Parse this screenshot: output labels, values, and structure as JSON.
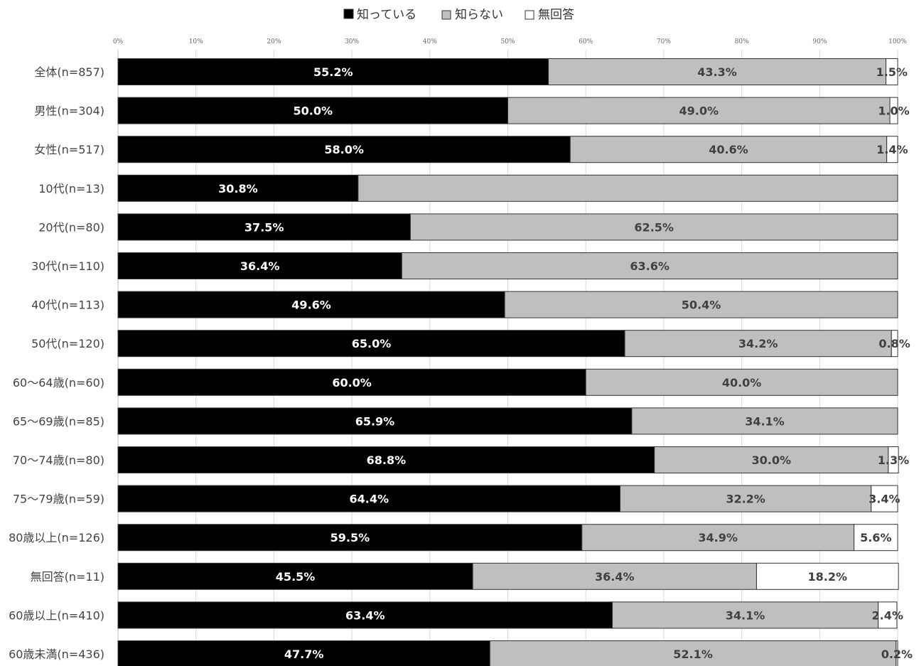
{
  "colors": {
    "know": "#000000",
    "dont_know": "#bfbfbf",
    "no_answer": "#ffffff",
    "border": "#333333",
    "grid": "#d9d9d9",
    "label_on_dark": "#ffffff",
    "label_on_light": "#404040"
  },
  "chart_data": {
    "type": "bar",
    "orientation": "horizontal",
    "stacked": true,
    "percent_stacked": true,
    "title": "",
    "xlabel": "",
    "ylabel": "",
    "xlim": [
      0,
      100
    ],
    "x_ticks": [
      "0%",
      "10%",
      "20%",
      "30%",
      "40%",
      "50%",
      "60%",
      "70%",
      "80%",
      "90%",
      "100%"
    ],
    "grid": true,
    "legend_position": "top-center",
    "categories": [
      "全体(n=857)",
      "男性(n=304)",
      "女性(n=517)",
      "10代(n=13)",
      "20代(n=80)",
      "30代(n=110)",
      "40代(n=113)",
      "50代(n=120)",
      "60～64歳(n=60)",
      "65～69歳(n=85)",
      "70～74歳(n=80)",
      "75～79歳(n=59)",
      "80歳以上(n=126)",
      "無回答(n=11)",
      "60歳以上(n=410)",
      "60歳未満(n=436)"
    ],
    "series": [
      {
        "name": "知っている",
        "color": "#000000",
        "values": [
          55.2,
          50.0,
          58.0,
          30.8,
          37.5,
          36.4,
          49.6,
          65.0,
          60.0,
          65.9,
          68.8,
          64.4,
          59.5,
          45.5,
          63.4,
          47.7
        ],
        "labels": [
          "55.2%",
          "50.0%",
          "58.0%",
          "30.8%",
          "37.5%",
          "36.4%",
          "49.6%",
          "65.0%",
          "60.0%",
          "65.9%",
          "68.8%",
          "64.4%",
          "59.5%",
          "45.5%",
          "63.4%",
          "47.7%"
        ]
      },
      {
        "name": "知らない",
        "color": "#bfbfbf",
        "values": [
          43.3,
          49.0,
          40.6,
          69.2,
          62.5,
          63.6,
          50.4,
          34.2,
          40.0,
          34.1,
          30.0,
          32.2,
          34.9,
          36.4,
          34.1,
          52.1
        ],
        "labels": [
          "43.3%",
          "49.0%",
          "40.6%",
          "",
          "62.5%",
          "63.6%",
          "50.4%",
          "34.2%",
          "40.0%",
          "34.1%",
          "30.0%",
          "32.2%",
          "34.9%",
          "36.4%",
          "34.1%",
          "52.1%"
        ]
      },
      {
        "name": "無回答",
        "color": "#ffffff",
        "values": [
          1.5,
          1.0,
          1.4,
          0,
          0,
          0,
          0,
          0.8,
          0,
          0,
          1.3,
          3.4,
          5.6,
          18.2,
          2.4,
          0.2
        ],
        "labels": [
          "1.5%",
          "1.0%",
          "1.4%",
          "",
          "",
          "",
          "",
          "0.8%",
          "",
          "",
          "1.3%",
          "3.4%",
          "5.6%",
          "18.2%",
          "2.4%",
          "0.2%"
        ]
      }
    ]
  }
}
